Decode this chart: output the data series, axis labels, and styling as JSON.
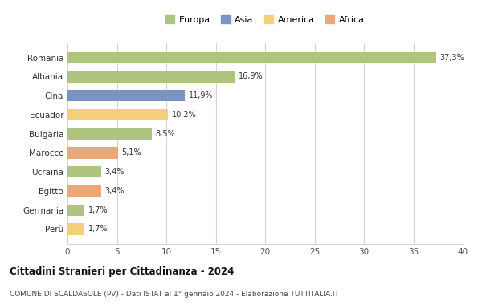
{
  "countries": [
    "Romania",
    "Albania",
    "Cina",
    "Ecuador",
    "Bulgaria",
    "Marocco",
    "Ucraina",
    "Egitto",
    "Germania",
    "Perù"
  ],
  "values": [
    37.3,
    16.9,
    11.9,
    10.2,
    8.5,
    5.1,
    3.4,
    3.4,
    1.7,
    1.7
  ],
  "labels": [
    "37,3%",
    "16,9%",
    "11,9%",
    "10,2%",
    "8,5%",
    "5,1%",
    "3,4%",
    "3,4%",
    "1,7%",
    "1,7%"
  ],
  "colors": [
    "#aec47f",
    "#aec47f",
    "#7b93c4",
    "#f5d07a",
    "#aec47f",
    "#e8a97a",
    "#aec47f",
    "#e8a97a",
    "#aec47f",
    "#f5d07a"
  ],
  "legend_labels": [
    "Europa",
    "Asia",
    "America",
    "Africa"
  ],
  "legend_colors": [
    "#aec47f",
    "#7b93c4",
    "#f5d07a",
    "#e8a97a"
  ],
  "title": "Cittadini Stranieri per Cittadinanza - 2024",
  "subtitle": "COMUNE DI SCALDASOLE (PV) - Dati ISTAT al 1° gennaio 2024 - Elaborazione TUTTITALIA.IT",
  "xlim": [
    0,
    40
  ],
  "xticks": [
    0,
    5,
    10,
    15,
    20,
    25,
    30,
    35,
    40
  ],
  "background_color": "#ffffff",
  "grid_color": "#d5d5d5"
}
